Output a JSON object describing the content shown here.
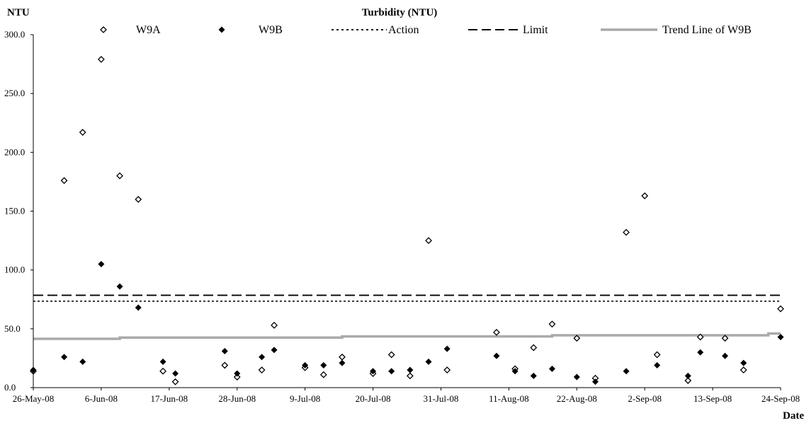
{
  "chart_data": {
    "type": "scatter",
    "title": "Turbidity (NTU)",
    "ylabel": "NTU",
    "xlabel": "Date",
    "ylim": [
      0,
      300
    ],
    "yticks": [
      "0.0",
      "50.0",
      "100.0",
      "150.0",
      "200.0",
      "250.0",
      "300.0"
    ],
    "xlim": [
      "2008-05-26",
      "2008-09-24"
    ],
    "xticks": [
      "26-May-08",
      "6-Jun-08",
      "17-Jun-08",
      "28-Jun-08",
      "9-Jul-08",
      "20-Jul-08",
      "31-Jul-08",
      "11-Aug-08",
      "22-Aug-08",
      "2-Sep-08",
      "13-Sep-08",
      "24-Sep-08"
    ],
    "grid": false,
    "legend_position": "top",
    "series": [
      {
        "name": "W9A",
        "marker": "open-diamond",
        "color": "#000000",
        "points": [
          [
            "2008-05-26",
            14
          ],
          [
            "2008-05-31",
            176
          ],
          [
            "2008-06-03",
            217
          ],
          [
            "2008-06-06",
            279
          ],
          [
            "2008-06-09",
            180
          ],
          [
            "2008-06-12",
            160
          ],
          [
            "2008-06-16",
            14
          ],
          [
            "2008-06-18",
            5
          ],
          [
            "2008-06-26",
            19
          ],
          [
            "2008-06-28",
            9
          ],
          [
            "2008-07-02",
            15
          ],
          [
            "2008-07-04",
            53
          ],
          [
            "2008-07-09",
            17
          ],
          [
            "2008-07-12",
            11
          ],
          [
            "2008-07-15",
            26
          ],
          [
            "2008-07-20",
            12
          ],
          [
            "2008-07-23",
            28
          ],
          [
            "2008-07-26",
            10
          ],
          [
            "2008-07-29",
            125
          ],
          [
            "2008-08-01",
            15
          ],
          [
            "2008-08-09",
            47
          ],
          [
            "2008-08-12",
            16
          ],
          [
            "2008-08-15",
            34
          ],
          [
            "2008-08-18",
            54
          ],
          [
            "2008-08-22",
            42
          ],
          [
            "2008-08-25",
            8
          ],
          [
            "2008-08-30",
            132
          ],
          [
            "2008-09-02",
            163
          ],
          [
            "2008-09-04",
            28
          ],
          [
            "2008-09-09",
            6
          ],
          [
            "2008-09-11",
            43
          ],
          [
            "2008-09-15",
            42
          ],
          [
            "2008-09-18",
            15
          ],
          [
            "2008-09-24",
            67
          ]
        ]
      },
      {
        "name": "W9B",
        "marker": "filled-diamond",
        "color": "#000000",
        "points": [
          [
            "2008-05-26",
            15
          ],
          [
            "2008-05-31",
            26
          ],
          [
            "2008-06-03",
            22
          ],
          [
            "2008-06-06",
            105
          ],
          [
            "2008-06-09",
            86
          ],
          [
            "2008-06-12",
            68
          ],
          [
            "2008-06-16",
            22
          ],
          [
            "2008-06-18",
            12
          ],
          [
            "2008-06-26",
            31
          ],
          [
            "2008-06-28",
            12
          ],
          [
            "2008-07-02",
            26
          ],
          [
            "2008-07-04",
            32
          ],
          [
            "2008-07-09",
            19
          ],
          [
            "2008-07-12",
            19
          ],
          [
            "2008-07-15",
            21
          ],
          [
            "2008-07-20",
            14
          ],
          [
            "2008-07-23",
            14
          ],
          [
            "2008-07-26",
            15
          ],
          [
            "2008-07-29",
            22
          ],
          [
            "2008-08-01",
            33
          ],
          [
            "2008-08-09",
            27
          ],
          [
            "2008-08-12",
            14
          ],
          [
            "2008-08-15",
            10
          ],
          [
            "2008-08-18",
            16
          ],
          [
            "2008-08-22",
            9
          ],
          [
            "2008-08-25",
            5
          ],
          [
            "2008-08-30",
            14
          ],
          [
            "2008-09-04",
            19
          ],
          [
            "2008-09-09",
            10
          ],
          [
            "2008-09-11",
            30
          ],
          [
            "2008-09-15",
            27
          ],
          [
            "2008-09-18",
            21
          ],
          [
            "2008-09-24",
            43
          ]
        ]
      },
      {
        "name": "Action",
        "line_style": "dotted",
        "color": "#000000",
        "value": 73.5
      },
      {
        "name": "Limit",
        "line_style": "dashed",
        "color": "#000000",
        "value": 78.5
      },
      {
        "name": "Trend Line of W9B",
        "line_style": "solid",
        "color": "#aaaaaa",
        "steps": [
          [
            "2008-05-26",
            41.5
          ],
          [
            "2008-06-09",
            42.5
          ],
          [
            "2008-07-15",
            43.5
          ],
          [
            "2008-08-18",
            44.5
          ],
          [
            "2008-09-22",
            46
          ]
        ],
        "end": [
          "2008-09-24",
          46
        ]
      }
    ]
  }
}
